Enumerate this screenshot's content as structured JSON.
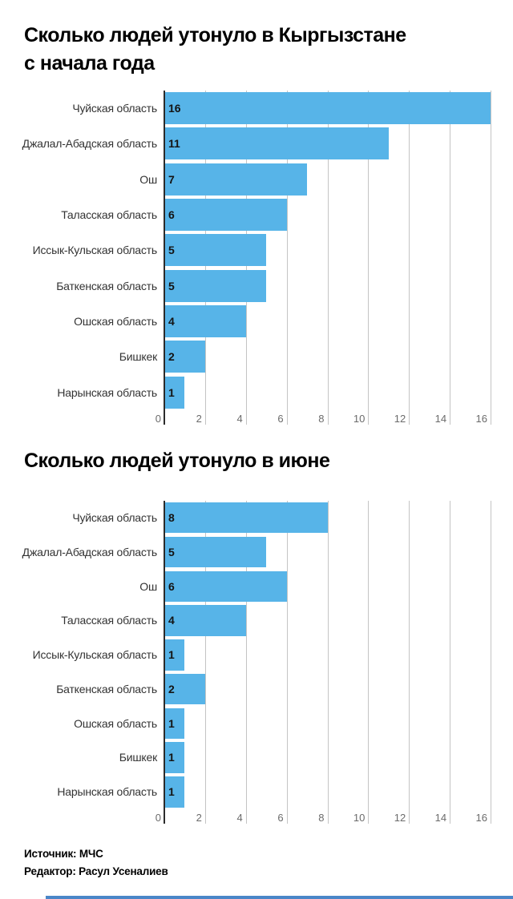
{
  "page_background": "#ffffff",
  "colors": {
    "bar": "#57b4e8",
    "axis_line": "#2b2b2b",
    "gridline": "#c4c4c4",
    "tick_label": "#6b6b6b",
    "category_label": "#333333",
    "value_label": "#141414",
    "title": "#000000",
    "footer": "#000000",
    "bottom_strip": "#4a86c8"
  },
  "footer": {
    "source": "Источник: МЧС",
    "editor": "Редактор: Расул Усеналиев"
  },
  "chart_data": [
    {
      "type": "bar",
      "orientation": "horizontal",
      "title": "Сколько людей утонуло в Кыргызстане с начала года",
      "title_lines": [
        "Сколько людей утонуло в Кыргызстане",
        "с начала года"
      ],
      "categories": [
        "Чуйская область",
        "Джалал-Абадская область",
        "Ош",
        "Таласская область",
        "Иссык-Кульская область",
        "Баткенская область",
        "Ошская область",
        "Бишкек",
        "Нарынская область"
      ],
      "values": [
        16,
        11,
        7,
        6,
        5,
        5,
        4,
        2,
        1
      ],
      "xlabel": "",
      "ylabel": "",
      "xlim": [
        0,
        16
      ],
      "xticks": [
        0,
        2,
        4,
        6,
        8,
        10,
        12,
        14,
        16
      ],
      "grid": true,
      "legend": "none",
      "value_labels": "inside-left"
    },
    {
      "type": "bar",
      "orientation": "horizontal",
      "title": "Сколько людей утонуло в июне",
      "title_lines": [
        "Сколько людей утонуло в июне"
      ],
      "categories": [
        "Чуйская область",
        "Джалал-Абадская область",
        "Ош",
        "Таласская область",
        "Иссык-Кульская область",
        "Баткенская область",
        "Ошская область",
        "Бишкек",
        "Нарынская область"
      ],
      "values": [
        8,
        5,
        6,
        4,
        1,
        2,
        1,
        1,
        1
      ],
      "xlabel": "",
      "ylabel": "",
      "xlim": [
        0,
        16
      ],
      "xticks": [
        0,
        2,
        4,
        6,
        8,
        10,
        12,
        14,
        16
      ],
      "grid": true,
      "legend": "none",
      "value_labels": "inside-left"
    }
  ]
}
